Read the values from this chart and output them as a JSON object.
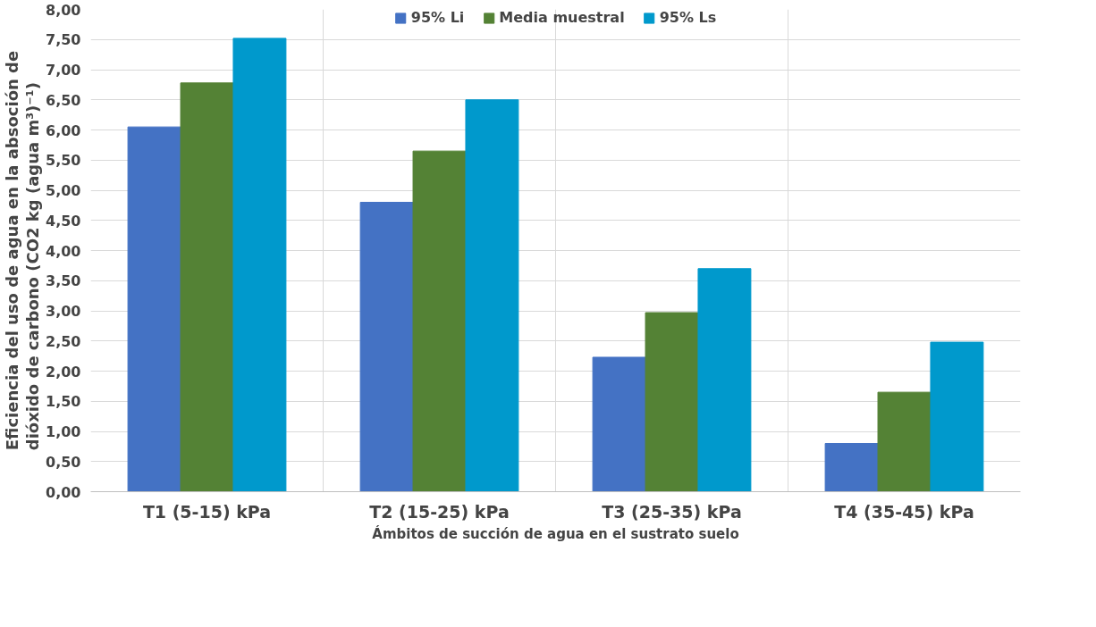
{
  "chart_data": {
    "type": "bar",
    "xlabel": "Ámbitos de succión de agua en el sustrato suelo",
    "ylabel": "Eficiencia del uso de agua en la absoción de dióxido de carbono (CO2 kg (agua m³)⁻¹)",
    "categories": [
      "T1 (5-15) kPa",
      "T2 (15-25) kPa",
      "T3 (25-35) kPa",
      "T4 (35-45) kPa"
    ],
    "series": [
      {
        "name": "95% Li",
        "color": "#4472c4",
        "values": [
          6.05,
          4.8,
          2.23,
          0.8
        ]
      },
      {
        "name": "Media muestral",
        "color": "#548235",
        "values": [
          6.78,
          5.65,
          2.97,
          1.65
        ]
      },
      {
        "name": "95% Ls",
        "color": "#0099cc",
        "values": [
          7.52,
          6.5,
          3.7,
          2.48
        ]
      }
    ],
    "ylim": [
      0,
      8
    ],
    "yticks": [
      {
        "value": 0,
        "label": "0,00"
      },
      {
        "value": 0.5,
        "label": "0,50"
      },
      {
        "value": 1,
        "label": "1,00"
      },
      {
        "value": 1.5,
        "label": "1,50"
      },
      {
        "value": 2,
        "label": "2,00"
      },
      {
        "value": 2.5,
        "label": "2,50"
      },
      {
        "value": 3,
        "label": "3,00"
      },
      {
        "value": 3.5,
        "label": "3,50"
      },
      {
        "value": 4,
        "label": "4,00"
      },
      {
        "value": 4.5,
        "label": "4,50"
      },
      {
        "value": 5,
        "label": "5,00"
      },
      {
        "value": 5.5,
        "label": "5,50"
      },
      {
        "value": 6,
        "label": "6,00"
      },
      {
        "value": 6.5,
        "label": "6,50"
      },
      {
        "value": 7,
        "label": "7,00"
      },
      {
        "value": 7.5,
        "label": "7,50"
      },
      {
        "value": 8,
        "label": "8,00"
      }
    ],
    "grid": true,
    "legend": "top"
  }
}
